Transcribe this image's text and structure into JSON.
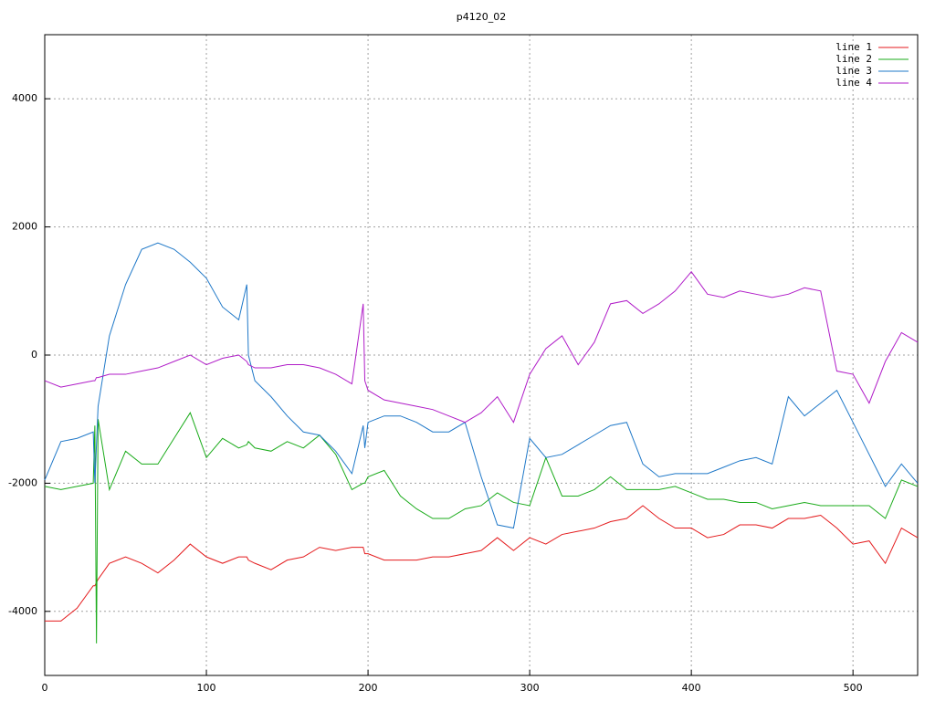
{
  "chart_data": {
    "type": "line",
    "title": "p4120_02",
    "x": [
      0,
      10,
      20,
      30,
      31,
      32,
      33,
      40,
      50,
      60,
      70,
      80,
      90,
      100,
      110,
      120,
      125,
      126,
      130,
      140,
      150,
      160,
      170,
      180,
      190,
      197,
      198,
      200,
      210,
      220,
      230,
      240,
      250,
      260,
      270,
      280,
      290,
      300,
      310,
      320,
      330,
      340,
      350,
      360,
      370,
      380,
      390,
      400,
      410,
      420,
      430,
      440,
      450,
      460,
      470,
      480,
      490,
      500,
      510,
      520,
      530,
      540
    ],
    "series": [
      {
        "name": "line 1",
        "color": "#e41a1c",
        "values": [
          -4150,
          -4150,
          -3950,
          -3600,
          -3600,
          -3550,
          -3500,
          -3250,
          -3150,
          -3250,
          -3400,
          -3200,
          -2950,
          -3150,
          -3250,
          -3150,
          -3150,
          -3200,
          -3250,
          -3350,
          -3200,
          -3150,
          -3000,
          -3050,
          -3000,
          -3000,
          -3100,
          -3100,
          -3200,
          -3200,
          -3200,
          -3150,
          -3150,
          -3100,
          -3050,
          -2850,
          -3050,
          -2850,
          -2950,
          -2800,
          -2750,
          -2700,
          -2600,
          -2550,
          -2350,
          -2550,
          -2700,
          -2700,
          -2850,
          -2800,
          -2650,
          -2650,
          -2700,
          -2550,
          -2550,
          -2500,
          -2700,
          -2950,
          -2900,
          -3250,
          -2700,
          -2850
        ]
      },
      {
        "name": "line 2",
        "color": "#1aab1a",
        "values": [
          -2050,
          -2100,
          -2050,
          -2000,
          -1100,
          -4500,
          -1000,
          -2100,
          -1500,
          -1700,
          -1700,
          -1300,
          -900,
          -1600,
          -1300,
          -1450,
          -1400,
          -1350,
          -1450,
          -1500,
          -1350,
          -1450,
          -1250,
          -1550,
          -2100,
          -2000,
          -2000,
          -1900,
          -1800,
          -2200,
          -2400,
          -2550,
          -2550,
          -2400,
          -2350,
          -2150,
          -2300,
          -2350,
          -1600,
          -2200,
          -2200,
          -2100,
          -1900,
          -2100,
          -2100,
          -2100,
          -2050,
          -2150,
          -2250,
          -2250,
          -2300,
          -2300,
          -2400,
          -2350,
          -2300,
          -2350,
          -2350,
          -2350,
          -2350,
          -2550,
          -1950,
          -2050
        ]
      },
      {
        "name": "line 3",
        "color": "#1f78c8",
        "values": [
          -1950,
          -1350,
          -1300,
          -1200,
          -2000,
          -1400,
          -800,
          300,
          1100,
          1650,
          1750,
          1650,
          1450,
          1200,
          750,
          550,
          1100,
          0,
          -400,
          -650,
          -950,
          -1200,
          -1250,
          -1500,
          -1850,
          -1100,
          -1450,
          -1050,
          -950,
          -950,
          -1050,
          -1200,
          -1200,
          -1050,
          -1900,
          -2650,
          -2700,
          -1300,
          -1600,
          -1550,
          -1400,
          -1250,
          -1100,
          -1050,
          -1700,
          -1900,
          -1850,
          -1850,
          -1850,
          -1750,
          -1650,
          -1600,
          -1700,
          -650,
          -950,
          -750,
          -550,
          -1050,
          -1550,
          -2050,
          -1700,
          -2000
        ]
      },
      {
        "name": "line 4",
        "color": "#b01cc8",
        "values": [
          -400,
          -500,
          -450,
          -400,
          -400,
          -350,
          -350,
          -300,
          -300,
          -250,
          -200,
          -100,
          0,
          -150,
          -50,
          0,
          -100,
          -150,
          -200,
          -200,
          -150,
          -150,
          -200,
          -300,
          -450,
          800,
          -400,
          -550,
          -700,
          -750,
          -800,
          -850,
          -950,
          -1050,
          -900,
          -650,
          -1050,
          -300,
          100,
          300,
          -150,
          200,
          800,
          850,
          650,
          800,
          1000,
          1300,
          950,
          900,
          1000,
          950,
          900,
          950,
          1050,
          1000,
          -250,
          -300,
          -750,
          -100,
          350,
          200
        ]
      }
    ],
    "xlim": [
      0,
      540
    ],
    "ylim": [
      -5000,
      5000
    ],
    "xticks": [
      0,
      100,
      200,
      300,
      400,
      500
    ],
    "yticks": [
      -4000,
      -2000,
      0,
      2000,
      4000
    ],
    "grid": true,
    "legend": "top-right"
  }
}
